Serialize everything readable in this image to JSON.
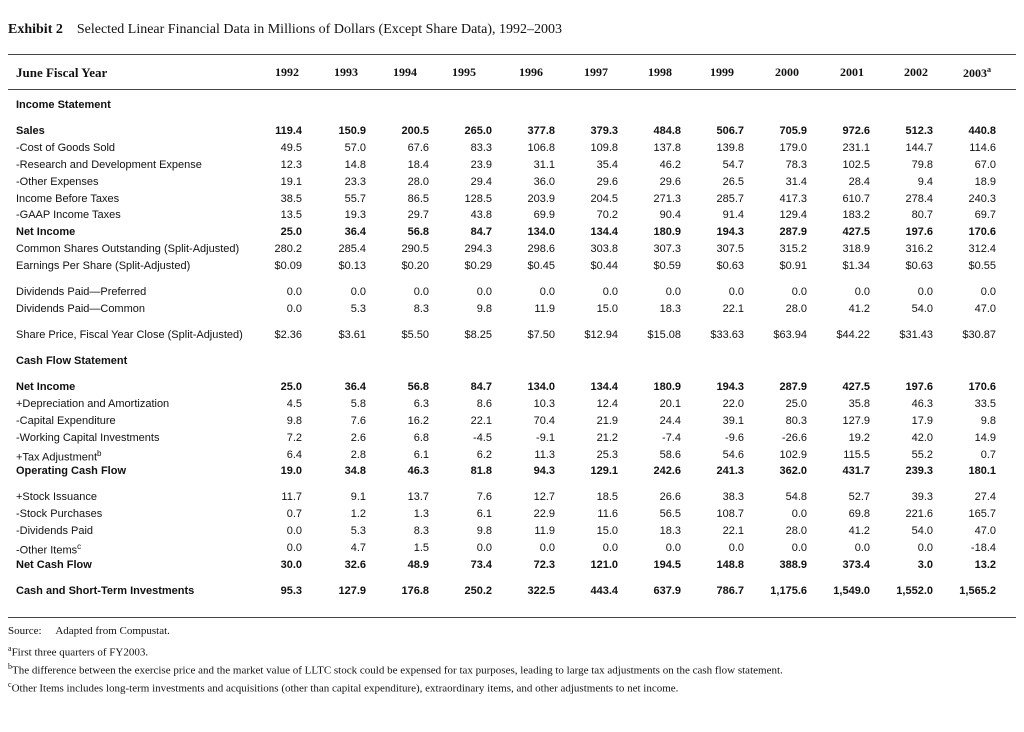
{
  "exhibit": {
    "label": "Exhibit 2",
    "title": "Selected Linear Financial Data in Millions of Dollars (Except Share Data), 1992–2003"
  },
  "header": {
    "label": "June Fiscal Year",
    "years": [
      "1992",
      "1993",
      "1994",
      "1995",
      "1996",
      "1997",
      "1998",
      "1999",
      "2000",
      "2001",
      "2002",
      "2003"
    ],
    "last_year_sup": "a"
  },
  "sections": [
    {
      "title": "Income Statement",
      "rows": [
        {
          "label": "Sales",
          "bold": true,
          "values": [
            "119.4",
            "150.9",
            "200.5",
            "265.0",
            "377.8",
            "379.3",
            "484.8",
            "506.7",
            "705.9",
            "972.6",
            "512.3",
            "440.8"
          ]
        },
        {
          "label": "-Cost of Goods Sold",
          "values": [
            "49.5",
            "57.0",
            "67.6",
            "83.3",
            "106.8",
            "109.8",
            "137.8",
            "139.8",
            "179.0",
            "231.1",
            "144.7",
            "114.6"
          ]
        },
        {
          "label": "-Research and Development Expense",
          "values": [
            "12.3",
            "14.8",
            "18.4",
            "23.9",
            "31.1",
            "35.4",
            "46.2",
            "54.7",
            "78.3",
            "102.5",
            "79.8",
            "67.0"
          ]
        },
        {
          "label": "-Other Expenses",
          "values": [
            "19.1",
            "23.3",
            "28.0",
            "29.4",
            "36.0",
            "29.6",
            "29.6",
            "26.5",
            "31.4",
            "28.4",
            "9.4",
            "18.9"
          ]
        },
        {
          "label": "Income Before Taxes",
          "values": [
            "38.5",
            "55.7",
            "86.5",
            "128.5",
            "203.9",
            "204.5",
            "271.3",
            "285.7",
            "417.3",
            "610.7",
            "278.4",
            "240.3"
          ]
        },
        {
          "label": "-GAAP Income Taxes",
          "values": [
            "13.5",
            "19.3",
            "29.7",
            "43.8",
            "69.9",
            "70.2",
            "90.4",
            "91.4",
            "129.4",
            "183.2",
            "80.7",
            "69.7"
          ]
        },
        {
          "label": "Net Income",
          "bold": true,
          "values": [
            "25.0",
            "36.4",
            "56.8",
            "84.7",
            "134.0",
            "134.4",
            "180.9",
            "194.3",
            "287.9",
            "427.5",
            "197.6",
            "170.6"
          ]
        },
        {
          "label": "Common Shares Outstanding (Split-Adjusted)",
          "values": [
            "280.2",
            "285.4",
            "290.5",
            "294.3",
            "298.6",
            "303.8",
            "307.3",
            "307.5",
            "315.2",
            "318.9",
            "316.2",
            "312.4"
          ]
        },
        {
          "label": "Earnings Per Share (Split-Adjusted)",
          "values": [
            "$0.09",
            "$0.13",
            "$0.20",
            "$0.29",
            "$0.45",
            "$0.44",
            "$0.59",
            "$0.63",
            "$0.91",
            "$1.34",
            "$0.63",
            "$0.55"
          ]
        },
        {
          "label": "Dividends Paid—Preferred",
          "values": [
            "0.0",
            "0.0",
            "0.0",
            "0.0",
            "0.0",
            "0.0",
            "0.0",
            "0.0",
            "0.0",
            "0.0",
            "0.0",
            "0.0"
          ]
        },
        {
          "label": "Dividends Paid—Common",
          "values": [
            "0.0",
            "5.3",
            "8.3",
            "9.8",
            "11.9",
            "15.0",
            "18.3",
            "22.1",
            "28.0",
            "41.2",
            "54.0",
            "47.0"
          ]
        },
        {
          "label": "Share Price, Fiscal Year Close (Split-Adjusted)",
          "values": [
            "$2.36",
            "$3.61",
            "$5.50",
            "$8.25",
            "$7.50",
            "$12.94",
            "$15.08",
            "$33.63",
            "$63.94",
            "$44.22",
            "$31.43",
            "$30.87"
          ]
        }
      ]
    },
    {
      "title": "Cash Flow Statement",
      "rows": [
        {
          "label": "Net Income",
          "bold": true,
          "values": [
            "25.0",
            "36.4",
            "56.8",
            "84.7",
            "134.0",
            "134.4",
            "180.9",
            "194.3",
            "287.9",
            "427.5",
            "197.6",
            "170.6"
          ]
        },
        {
          "label": "+Depreciation and Amortization",
          "values": [
            "4.5",
            "5.8",
            "6.3",
            "8.6",
            "10.3",
            "12.4",
            "20.1",
            "22.0",
            "25.0",
            "35.8",
            "46.3",
            "33.5"
          ]
        },
        {
          "label": "-Capital Expenditure",
          "values": [
            "9.8",
            "7.6",
            "16.2",
            "22.1",
            "70.4",
            "21.9",
            "24.4",
            "39.1",
            "80.3",
            "127.9",
            "17.9",
            "9.8"
          ]
        },
        {
          "label": "-Working Capital Investments",
          "values": [
            "7.2",
            "2.6",
            "6.8",
            "-4.5",
            "-9.1",
            "21.2",
            "-7.4",
            "-9.6",
            "-26.6",
            "19.2",
            "42.0",
            "14.9"
          ]
        },
        {
          "label": "+Tax Adjustment",
          "sup": "b",
          "values": [
            "6.4",
            "2.8",
            "6.1",
            "6.2",
            "11.3",
            "25.3",
            "58.6",
            "54.6",
            "102.9",
            "115.5",
            "55.2",
            "0.7"
          ]
        },
        {
          "label": "Operating Cash Flow",
          "bold": true,
          "values": [
            "19.0",
            "34.8",
            "46.3",
            "81.8",
            "94.3",
            "129.1",
            "242.6",
            "241.3",
            "362.0",
            "431.7",
            "239.3",
            "180.1"
          ]
        },
        {
          "label": "+Stock Issuance",
          "values": [
            "11.7",
            "9.1",
            "13.7",
            "7.6",
            "12.7",
            "18.5",
            "26.6",
            "38.3",
            "54.8",
            "52.7",
            "39.3",
            "27.4"
          ]
        },
        {
          "label": "-Stock Purchases",
          "values": [
            "0.7",
            "1.2",
            "1.3",
            "6.1",
            "22.9",
            "11.6",
            "56.5",
            "108.7",
            "0.0",
            "69.8",
            "221.6",
            "165.7"
          ]
        },
        {
          "label": "-Dividends Paid",
          "values": [
            "0.0",
            "5.3",
            "8.3",
            "9.8",
            "11.9",
            "15.0",
            "18.3",
            "22.1",
            "28.0",
            "41.2",
            "54.0",
            "47.0"
          ]
        },
        {
          "label": "-Other Items",
          "sup": "c",
          "values": [
            "0.0",
            "4.7",
            "1.5",
            "0.0",
            "0.0",
            "0.0",
            "0.0",
            "0.0",
            "0.0",
            "0.0",
            "0.0",
            "-18.4"
          ]
        },
        {
          "label": "Net Cash Flow",
          "bold": true,
          "values": [
            "30.0",
            "32.6",
            "48.9",
            "73.4",
            "72.3",
            "121.0",
            "194.5",
            "148.8",
            "388.9",
            "373.4",
            "3.0",
            "13.2"
          ]
        },
        {
          "label": "Cash and Short-Term Investments",
          "bold": true,
          "values": [
            "95.3",
            "127.9",
            "176.8",
            "250.2",
            "322.5",
            "443.4",
            "637.9",
            "786.7",
            "1,175.6",
            "1,549.0",
            "1,552.0",
            "1,565.2"
          ]
        }
      ]
    }
  ],
  "notes": {
    "source_label": "Source:",
    "source_text": "Adapted from Compustat.",
    "footnotes": [
      {
        "mark": "a",
        "text": "First three quarters of FY2003."
      },
      {
        "mark": "b",
        "text": "The difference between the exercise price and the market value of LLTC stock could be expensed for tax purposes, leading to large tax adjustments on the cash flow statement."
      },
      {
        "mark": "c",
        "text": "Other Items includes long-term investments and acquisitions (other than capital expenditure), extraordinary items, and other adjustments to net income."
      }
    ]
  }
}
